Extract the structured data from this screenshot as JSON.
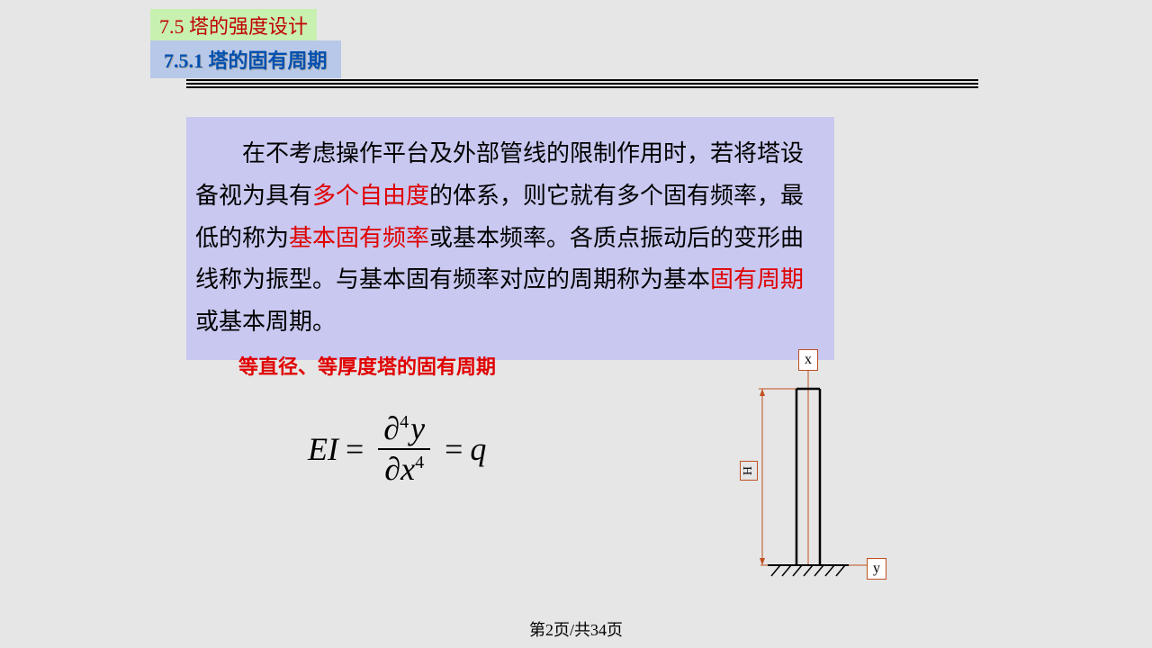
{
  "section": {
    "number": "7.5",
    "title": "塔的强度设计",
    "bg_color": "#c8f0b0",
    "fg_color": "#c00000"
  },
  "subsection": {
    "number": "7.5.1",
    "title": "塔的固有周期",
    "bg_color": "#b8c8e8",
    "fg_color": "#0050b0"
  },
  "content": {
    "bg_color": "#c8c8f0",
    "text_parts": [
      {
        "text": "在不考虑操作平台及外部管线的限制作用时，若将塔设备视为具有",
        "color": "#000000"
      },
      {
        "text": "多个自由度",
        "color": "#e00000"
      },
      {
        "text": "的体系，则它就有多个固有频率，最低的称为",
        "color": "#000000"
      },
      {
        "text": "基本固有频率",
        "color": "#e00000"
      },
      {
        "text": "或基本频率。各质点振动后的变形曲线称为振型。与基本固有频率对应的周期称为基本",
        "color": "#000000"
      },
      {
        "text": "固有周期",
        "color": "#e00000"
      },
      {
        "text": "或基本周期。",
        "color": "#000000"
      }
    ]
  },
  "subtitle": {
    "text": "等直径、等厚度塔的固有周期",
    "color": "#e00000"
  },
  "equation": {
    "left": "EI",
    "eq1": "=",
    "num_partial": "∂",
    "num_sup": "4",
    "num_var": "y",
    "den_partial": "∂",
    "den_var": "x",
    "den_sup": "4",
    "eq2": "=",
    "right": "q"
  },
  "diagram": {
    "x_label": "x",
    "y_label": "y",
    "h_label": "H",
    "stroke_color": "#c05020",
    "tower_color": "#000000"
  },
  "footer": {
    "page": "第2页/共34页"
  }
}
